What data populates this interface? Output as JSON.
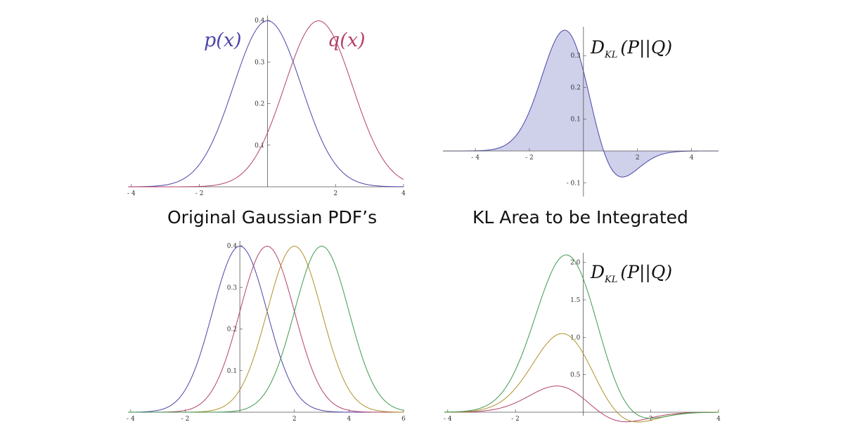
{
  "captions": {
    "left": "Original Gaussian PDF’s",
    "right": "KL Area to be Integrated"
  },
  "colors": {
    "p": "#4b45a8",
    "q": "#b3416b",
    "orange": "#b2902b",
    "green": "#3e9a4c",
    "fill": "#cfd0ea",
    "axis": "#555555"
  },
  "chart_data": [
    {
      "type": "line",
      "function": "gaussian_pdf",
      "sigma": 1,
      "series": [
        {
          "name": "p(x)",
          "mean": 0,
          "color": "#4b45a8"
        },
        {
          "name": "q(x)",
          "mean": 1.5,
          "color": "#b3416b"
        }
      ],
      "xlim": [
        -4.1,
        4.0
      ],
      "ylim": [
        0,
        0.4
      ],
      "xticks": [
        -4,
        -2,
        2,
        4
      ],
      "yticks": [
        0.1,
        0.2,
        0.3,
        0.4
      ],
      "xtick_labels": [
        "- 4",
        "- 2",
        "2",
        "4"
      ],
      "ytick_labels": [
        "0.1",
        "0.2",
        "0.3",
        "0.4"
      ]
    },
    {
      "type": "area",
      "function": "kl_integrand",
      "label": "D_KL (P || Q)",
      "label_parts": {
        "main": "D",
        "sub": "KL",
        "args": "(P||Q)"
      },
      "p_mean": 0,
      "q_mean": 1.5,
      "sigma": 1,
      "peak": {
        "x": -0.7,
        "y": 0.38
      },
      "trough": {
        "x": 1.1,
        "y": -0.14
      },
      "color": "#4b45a8",
      "fill": "#cfd0ea",
      "xlim": [
        -5.2,
        5.0
      ],
      "ylim": [
        -0.14,
        0.38
      ],
      "xticks": [
        -4,
        -2,
        2,
        4
      ],
      "yticks": [
        -0.1,
        0.1,
        0.2,
        0.3
      ],
      "xtick_labels": [
        "- 4",
        "- 2",
        "2",
        "4"
      ],
      "ytick_labels": [
        "- 0.1",
        "0.1",
        "0.2",
        "0.3"
      ]
    },
    {
      "type": "line",
      "function": "gaussian_pdf",
      "sigma": 1,
      "series": [
        {
          "mean": 0,
          "color": "#4b45a8"
        },
        {
          "mean": 1,
          "color": "#b3416b"
        },
        {
          "mean": 2,
          "color": "#b2902b"
        },
        {
          "mean": 3,
          "color": "#3e9a4c"
        }
      ],
      "xlim": [
        -4.1,
        6.0
      ],
      "ylim": [
        0,
        0.4
      ],
      "xticks": [
        -4,
        -2,
        2,
        4,
        6
      ],
      "yticks": [
        0.1,
        0.2,
        0.3,
        0.4
      ],
      "xtick_labels": [
        "- 4",
        "- 2",
        "2",
        "4",
        "6"
      ],
      "ytick_labels": [
        "0.1",
        "0.2",
        "0.3",
        "0.4"
      ]
    },
    {
      "type": "line",
      "function": "kl_integrand",
      "label": "D_KL (P || Q)",
      "label_parts": {
        "main": "D",
        "sub": "KL",
        "args": "(P||Q)"
      },
      "p_mean": 0,
      "sigma": 1,
      "series": [
        {
          "q_mean": 1,
          "color": "#b3416b",
          "peak": {
            "x": -0.6,
            "y": 0.35
          }
        },
        {
          "q_mean": 2,
          "color": "#b2902b",
          "peak": {
            "x": -0.6,
            "y": 1.05
          }
        },
        {
          "q_mean": 3,
          "color": "#3e9a4c",
          "peak": {
            "x": -0.6,
            "y": 2.1
          }
        }
      ],
      "xlim": [
        -4.1,
        4.0
      ],
      "ylim": [
        0,
        2.1
      ],
      "xticks": [
        -4,
        -2,
        2,
        4
      ],
      "yticks": [
        0.5,
        1.0,
        1.5,
        2.0
      ],
      "xtick_labels": [
        "- 4",
        "- 2",
        "2",
        "4"
      ],
      "ytick_labels": [
        "0.5",
        "1.0",
        "1.5",
        "2.0"
      ]
    }
  ]
}
